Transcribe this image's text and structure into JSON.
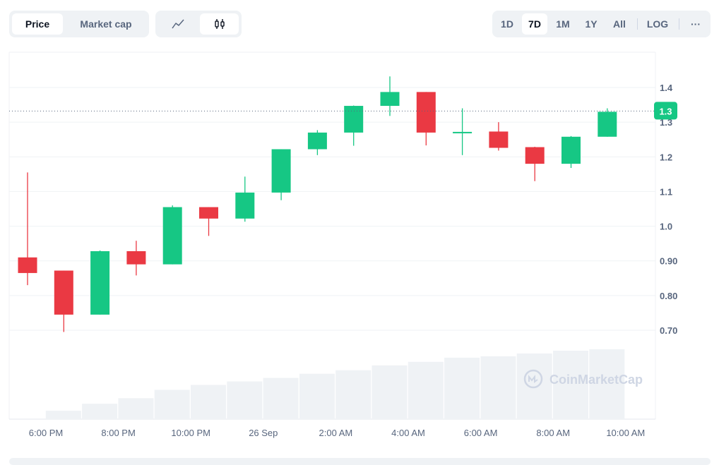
{
  "toolbar": {
    "metric_tabs": [
      "Price",
      "Market cap"
    ],
    "active_metric": "Price",
    "chart_type_buttons": [
      "line-chart-icon",
      "candlestick-icon"
    ],
    "active_chart_type": "candlestick-icon",
    "ranges": [
      "1D",
      "7D",
      "1M",
      "1Y",
      "All"
    ],
    "active_range": "7D",
    "log_label": "LOG",
    "more_label": "···"
  },
  "watermark": "CoinMarketCap",
  "colors": {
    "up": "#16c784",
    "down": "#ea3943",
    "volume": "#eff2f5",
    "grid": "#eff2f5",
    "current_badge": "#16c784"
  },
  "chart_data": {
    "type": "candlestick",
    "y_ticks": [
      "1.4",
      "1.3",
      "1.2",
      "1.1",
      "1.0",
      "0.90",
      "0.80",
      "0.70"
    ],
    "y_tick_values": [
      1.4,
      1.3,
      1.2,
      1.1,
      1.0,
      0.9,
      0.8,
      0.7
    ],
    "ylim": [
      0.66,
      1.5
    ],
    "current_price": 1.33,
    "current_price_label": "1.3",
    "x_labels": [
      "6:00 PM",
      "8:00 PM",
      "10:00 PM",
      "26 Sep",
      "2:00 AM",
      "4:00 AM",
      "6:00 AM",
      "8:00 AM",
      "10:00 AM"
    ],
    "candles": [
      {
        "open": 0.91,
        "high": 1.155,
        "low": 0.83,
        "close": 0.865
      },
      {
        "open": 0.872,
        "high": 0.872,
        "low": 0.695,
        "close": 0.745
      },
      {
        "open": 0.745,
        "high": 0.93,
        "low": 0.745,
        "close": 0.928
      },
      {
        "open": 0.928,
        "high": 0.958,
        "low": 0.858,
        "close": 0.89
      },
      {
        "open": 0.89,
        "high": 1.06,
        "low": 0.89,
        "close": 1.055
      },
      {
        "open": 1.055,
        "high": 1.055,
        "low": 0.972,
        "close": 1.022
      },
      {
        "open": 1.022,
        "high": 1.143,
        "low": 1.013,
        "close": 1.097
      },
      {
        "open": 1.097,
        "high": 1.222,
        "low": 1.075,
        "close": 1.222
      },
      {
        "open": 1.222,
        "high": 1.277,
        "low": 1.205,
        "close": 1.27
      },
      {
        "open": 1.27,
        "high": 1.348,
        "low": 1.232,
        "close": 1.347
      },
      {
        "open": 1.347,
        "high": 1.432,
        "low": 1.318,
        "close": 1.387
      },
      {
        "open": 1.387,
        "high": 1.387,
        "low": 1.233,
        "close": 1.27
      },
      {
        "open": 1.268,
        "high": 1.34,
        "low": 1.205,
        "close": 1.272
      },
      {
        "open": 1.273,
        "high": 1.3,
        "low": 1.218,
        "close": 1.226
      },
      {
        "open": 1.228,
        "high": 1.229,
        "low": 1.13,
        "close": 1.18
      },
      {
        "open": 1.18,
        "high": 1.26,
        "low": 1.168,
        "close": 1.258
      },
      {
        "open": 1.258,
        "high": 1.34,
        "low": 1.258,
        "close": 1.33
      }
    ],
    "volume_relative": [
      0.0,
      0.12,
      0.22,
      0.3,
      0.42,
      0.49,
      0.54,
      0.59,
      0.65,
      0.7,
      0.77,
      0.82,
      0.88,
      0.9,
      0.94,
      0.98,
      1.0
    ],
    "grid": true
  }
}
